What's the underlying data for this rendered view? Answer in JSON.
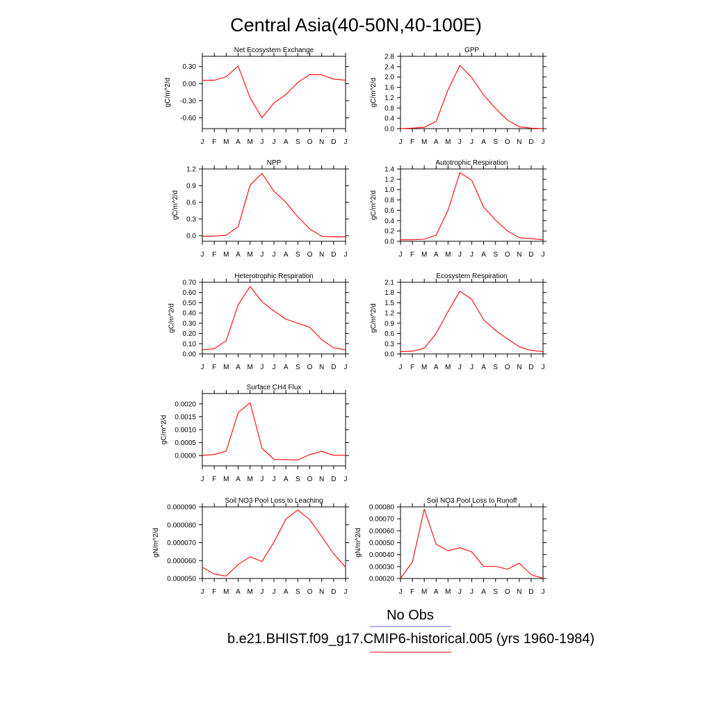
{
  "title": "Central Asia(40-50N,40-100E)",
  "months": [
    "J",
    "F",
    "M",
    "A",
    "M",
    "J",
    "J",
    "A",
    "S",
    "O",
    "N",
    "D",
    "J"
  ],
  "line_color": "#ff0000",
  "legend": {
    "obs_label": "No Obs",
    "obs_color": "#6a6aff",
    "model_label": "b.e21.BHIST.f09_g17.CMIP6-historical.005 (yrs 1960-1984)",
    "model_color": "#ff0000"
  },
  "chart_data": [
    {
      "type": "line",
      "title": "Net Ecosystem Exchange",
      "ylabel": "gC/m^2/d",
      "ylim": [
        -0.79,
        0.48
      ],
      "yticks": [
        "0.30",
        "0.00",
        "-0.30",
        "-0.60"
      ],
      "ytick_values": [
        0.3,
        0.0,
        -0.3,
        -0.6
      ],
      "values": [
        0.06,
        0.06,
        0.12,
        0.31,
        -0.25,
        -0.6,
        -0.34,
        -0.19,
        0.02,
        0.16,
        0.155,
        0.08,
        0.06
      ]
    },
    {
      "type": "line",
      "title": "GPP",
      "ylabel": "gC/m^2/d",
      "ylim": [
        0.0,
        2.8
      ],
      "yticks": [
        "2.8",
        "2.4",
        "2.0",
        "1.6",
        "1.2",
        "0.8",
        "0.4",
        "0.0"
      ],
      "ytick_values": [
        2.8,
        2.4,
        2.0,
        1.6,
        1.2,
        0.8,
        0.4,
        0.0
      ],
      "values": [
        0.0,
        0.02,
        0.05,
        0.28,
        1.5,
        2.45,
        1.98,
        1.3,
        0.78,
        0.33,
        0.07,
        0.02,
        0.0
      ]
    },
    {
      "type": "line",
      "title": "NPP",
      "ylabel": "gC/m^2/d",
      "ylim": [
        -0.1,
        1.2
      ],
      "yticks": [
        "1.2",
        "0.9",
        "0.6",
        "0.3",
        "0.0"
      ],
      "ytick_values": [
        1.2,
        0.9,
        0.6,
        0.3,
        0.0
      ],
      "values": [
        -0.01,
        -0.005,
        0.01,
        0.16,
        0.91,
        1.12,
        0.8,
        0.6,
        0.34,
        0.12,
        -0.01,
        -0.02,
        -0.02
      ]
    },
    {
      "type": "line",
      "title": "Autotrophic Respiration",
      "ylabel": "gC/m^2/d",
      "ylim": [
        0.0,
        1.4
      ],
      "yticks": [
        "1.4",
        "1.2",
        "1.0",
        "0.8",
        "0.6",
        "0.4",
        "0.2",
        "0.0"
      ],
      "ytick_values": [
        1.4,
        1.2,
        1.0,
        0.8,
        0.6,
        0.4,
        0.2,
        0.0
      ],
      "values": [
        0.03,
        0.03,
        0.04,
        0.12,
        0.6,
        1.33,
        1.18,
        0.66,
        0.41,
        0.2,
        0.07,
        0.05,
        0.03
      ]
    },
    {
      "type": "line",
      "title": "Heterotrophic Respiration",
      "ylabel": "gC/m^2/d",
      "ylim": [
        0.0,
        0.7
      ],
      "yticks": [
        "0.70",
        "0.60",
        "0.50",
        "0.40",
        "0.30",
        "0.20",
        "0.10",
        "0.00"
      ],
      "ytick_values": [
        0.7,
        0.6,
        0.5,
        0.4,
        0.3,
        0.2,
        0.1,
        0.0
      ],
      "values": [
        0.04,
        0.05,
        0.13,
        0.48,
        0.66,
        0.51,
        0.42,
        0.34,
        0.3,
        0.26,
        0.14,
        0.06,
        0.04
      ]
    },
    {
      "type": "line",
      "title": "Ecosystem Respiration",
      "ylabel": "gC/m^2/d",
      "ylim": [
        0.0,
        2.1
      ],
      "yticks": [
        "2.1",
        "1.8",
        "1.5",
        "1.2",
        "0.9",
        "0.6",
        "0.3",
        "0.0"
      ],
      "ytick_values": [
        2.1,
        1.8,
        1.5,
        1.2,
        0.9,
        0.6,
        0.3,
        0.0
      ],
      "values": [
        0.07,
        0.08,
        0.17,
        0.6,
        1.24,
        1.84,
        1.6,
        1.0,
        0.69,
        0.44,
        0.21,
        0.1,
        0.07
      ]
    },
    {
      "type": "line",
      "title": "Surface CH4 Flux",
      "ylabel": "gC/m^2/d",
      "ylim": [
        -0.0004,
        0.0024
      ],
      "yticks": [
        "0.0020",
        "0.0015",
        "0.0010",
        "0.0005",
        "0.0000"
      ],
      "ytick_values": [
        0.002,
        0.0015,
        0.001,
        0.0005,
        0.0
      ],
      "values": [
        1e-05,
        4e-05,
        0.00017,
        0.00166,
        0.00205,
        0.00028,
        -0.00015,
        -0.00016,
        -0.00017,
        4e-05,
        0.00016,
        1e-05,
        1e-05
      ]
    },
    {
      "type": "line",
      "title": "Soil NO3 Pool Loss to Leaching",
      "ylabel": "gN/m^2/d",
      "ylim": [
        5e-05,
        9e-05
      ],
      "yticks": [
        "0.000090",
        "0.000080",
        "0.000070",
        "0.000060",
        "0.000050"
      ],
      "ytick_values": [
        9e-05,
        8e-05,
        7e-05,
        6e-05,
        5e-05
      ],
      "values": [
        5.63e-05,
        5.24e-05,
        5.14e-05,
        5.78e-05,
        6.21e-05,
        5.95e-05,
        7.03e-05,
        8.32e-05,
        8.83e-05,
        8.28e-05,
        7.35e-05,
        6.38e-05,
        5.63e-05
      ]
    },
    {
      "type": "line",
      "title": "Soil NO3 Pool Loss to Runoff",
      "ylabel": "gN/m^2/d",
      "ylim": [
        0.0002,
        0.0008
      ],
      "yticks": [
        "0.00080",
        "0.00070",
        "0.00060",
        "0.00050",
        "0.00040",
        "0.00030",
        "0.00020"
      ],
      "ytick_values": [
        0.0008,
        0.0007,
        0.0006,
        0.0005,
        0.0004,
        0.0003,
        0.0002
      ],
      "values": [
        0.000202,
        0.000337,
        0.000781,
        0.000486,
        0.000432,
        0.000458,
        0.000422,
        0.000302,
        0.000302,
        0.000278,
        0.000328,
        0.000232,
        0.000202
      ]
    }
  ]
}
